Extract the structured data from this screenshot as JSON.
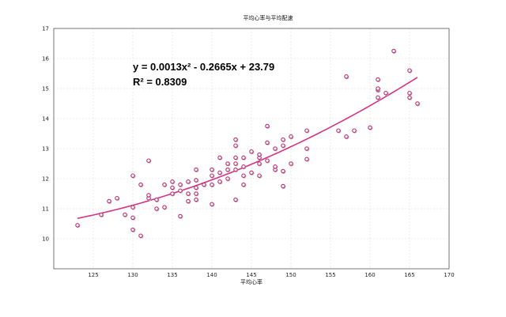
{
  "chart_data": {
    "type": "scatter",
    "title": "平均心率与平均配速",
    "xlabel": "平均心率",
    "ylabel": "",
    "xlim": [
      120,
      170
    ],
    "ylim": [
      9,
      17
    ],
    "xticks": [
      "125",
      "130",
      "135",
      "140",
      "145",
      "150",
      "155",
      "160",
      "165",
      "170"
    ],
    "yticks": [
      "10",
      "11",
      "12",
      "13",
      "14",
      "15",
      "16",
      "17"
    ],
    "grid": true,
    "equation": "y = 0.0013x² - 0.2665x + 23.79",
    "r_squared": "R² = 0.8309",
    "trendline": {
      "a": 0.0013,
      "b": -0.2665,
      "c": 23.79,
      "color": "#d63384"
    },
    "marker_color": "#c02a6a",
    "points": [
      [
        123,
        10.45
      ],
      [
        126,
        10.8
      ],
      [
        127,
        11.25
      ],
      [
        128,
        11.35
      ],
      [
        129,
        10.8
      ],
      [
        130,
        10.7
      ],
      [
        130,
        11.05
      ],
      [
        130,
        12.1
      ],
      [
        130,
        10.3
      ],
      [
        131,
        10.1
      ],
      [
        131,
        11.8
      ],
      [
        132,
        11.35
      ],
      [
        132,
        11.45
      ],
      [
        132,
        12.6
      ],
      [
        133,
        11.0
      ],
      [
        133,
        11.3
      ],
      [
        134,
        11.05
      ],
      [
        134,
        11.8
      ],
      [
        135,
        11.5
      ],
      [
        135,
        11.9
      ],
      [
        135,
        11.7
      ],
      [
        136,
        10.75
      ],
      [
        136,
        11.6
      ],
      [
        136,
        11.8
      ],
      [
        137,
        11.25
      ],
      [
        137,
        11.5
      ],
      [
        137,
        11.9
      ],
      [
        138,
        11.5
      ],
      [
        138,
        11.7
      ],
      [
        138,
        11.95
      ],
      [
        138,
        12.3
      ],
      [
        138,
        11.3
      ],
      [
        139,
        11.8
      ],
      [
        140,
        11.15
      ],
      [
        140,
        11.8
      ],
      [
        140,
        12.1
      ],
      [
        140,
        12.3
      ],
      [
        141,
        11.9
      ],
      [
        141,
        12.2
      ],
      [
        141,
        12.7
      ],
      [
        142,
        12.3
      ],
      [
        142,
        12.5
      ],
      [
        142,
        12.0
      ],
      [
        143,
        11.3
      ],
      [
        143,
        12.3
      ],
      [
        143,
        12.5
      ],
      [
        143,
        12.7
      ],
      [
        143,
        13.1
      ],
      [
        143,
        13.3
      ],
      [
        144,
        11.8
      ],
      [
        144,
        12.1
      ],
      [
        144,
        12.4
      ],
      [
        144,
        12.7
      ],
      [
        145,
        12.2
      ],
      [
        145,
        12.9
      ],
      [
        146,
        12.1
      ],
      [
        146,
        12.5
      ],
      [
        146,
        12.7
      ],
      [
        146,
        12.8
      ],
      [
        147,
        12.6
      ],
      [
        147,
        13.2
      ],
      [
        147,
        13.75
      ],
      [
        148,
        12.3
      ],
      [
        148,
        12.4
      ],
      [
        148,
        13.0
      ],
      [
        149,
        11.75
      ],
      [
        149,
        12.25
      ],
      [
        149,
        13.1
      ],
      [
        149,
        13.3
      ],
      [
        150,
        12.5
      ],
      [
        150,
        13.4
      ],
      [
        152,
        12.65
      ],
      [
        152,
        13.0
      ],
      [
        152,
        13.6
      ],
      [
        156,
        13.6
      ],
      [
        157,
        13.4
      ],
      [
        157,
        15.4
      ],
      [
        158,
        13.6
      ],
      [
        160,
        13.7
      ],
      [
        161,
        14.7
      ],
      [
        161,
        14.95
      ],
      [
        161,
        15.0
      ],
      [
        161,
        15.3
      ],
      [
        162,
        14.85
      ],
      [
        163,
        16.25
      ],
      [
        165,
        14.7
      ],
      [
        165,
        14.85
      ],
      [
        165,
        15.6
      ],
      [
        166,
        14.5
      ]
    ]
  }
}
